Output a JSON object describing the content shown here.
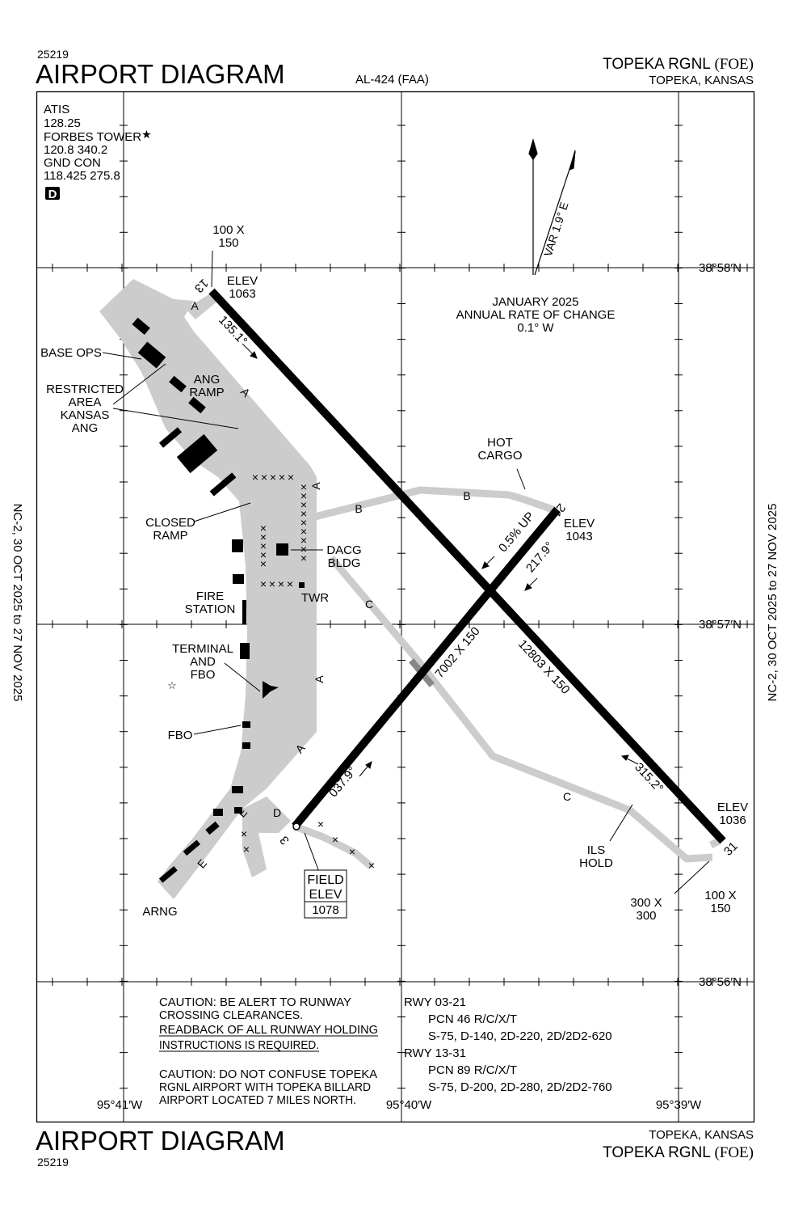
{
  "header": {
    "chart_number": "25219",
    "title": "AIRPORT DIAGRAM",
    "procedure_id": "AL-424 (FAA)",
    "airport_name": "TOPEKA RGNL",
    "airport_id": "(FOE)",
    "city_state": "TOPEKA, KANSAS"
  },
  "footer": {
    "title": "AIRPORT DIAGRAM",
    "chart_number": "25219",
    "city_state": "TOPEKA, KANSAS",
    "airport_name": "TOPEKA RGNL",
    "airport_id": "(FOE)"
  },
  "margin": {
    "left": "NC-2,  30 OCT 2025  to  27 NOV 2025",
    "right": "NC-2,  30 OCT 2025  to  27 NOV 2025"
  },
  "comms": {
    "lines": [
      "ATIS",
      "128.25",
      "FORBES TOWER",
      "120.8  340.2",
      "GND CON",
      "118.425  275.8"
    ],
    "star": "★",
    "d_badge": "D"
  },
  "magvar": {
    "var_label": "VAR 1.9° E",
    "date": "JANUARY 2025",
    "rate_label": "ANNUAL RATE OF CHANGE",
    "rate": "0.1° W"
  },
  "coords": {
    "lat": [
      "38°58′N",
      "38°57′N",
      "38°56′N"
    ],
    "lon": [
      "95°41′W",
      "95°40′W",
      "95°39′W"
    ]
  },
  "runways": {
    "r13": "13",
    "r31": "31",
    "r3": "3",
    "r21": "21",
    "hdg_135": "135.1°",
    "hdg_315": "315.2°",
    "hdg_037": "037.9°",
    "hdg_217": "217.9°",
    "dim_13_31": "12803 X 150",
    "dim_03_21": "7002 X 150",
    "slope": "0.5% UP",
    "elev_13": [
      "ELEV",
      "1063"
    ],
    "elev_21": [
      "ELEV",
      "1043"
    ],
    "elev_31": [
      "ELEV",
      "1036"
    ],
    "blast_13": [
      "100 X",
      "150"
    ],
    "blast_31": [
      "100 X",
      "150"
    ],
    "pad_31": [
      "300 X",
      "300"
    ]
  },
  "taxiways": [
    "A",
    "A",
    "A",
    "A",
    "A",
    "B",
    "B",
    "C",
    "C",
    "D",
    "E",
    "E"
  ],
  "labels": {
    "base_ops": "BASE OPS",
    "restricted": [
      "RESTRICTED",
      "AREA",
      "KANSAS",
      "ANG"
    ],
    "ang_ramp": [
      "ANG",
      "RAMP"
    ],
    "closed_ramp": [
      "CLOSED",
      "RAMP"
    ],
    "fire_station": [
      "FIRE",
      "STATION"
    ],
    "terminal": [
      "TERMINAL",
      "AND",
      "FBO"
    ],
    "fbo": "FBO",
    "arng": "ARNG",
    "dacg": [
      "DACG",
      "BLDG"
    ],
    "twr": "TWR",
    "hot_cargo": [
      "HOT",
      "CARGO"
    ],
    "ils_hold": [
      "ILS",
      "HOLD"
    ],
    "field_elev": [
      "FIELD",
      "ELEV",
      "1078"
    ]
  },
  "notes": {
    "caution1": [
      "CAUTION:  BE ALERT TO RUNWAY",
      "CROSSING CLEARANCES."
    ],
    "caution1_underlined": [
      "READBACK OF ALL RUNWAY HOLDING",
      "INSTRUCTIONS IS REQUIRED."
    ],
    "caution2": [
      "CAUTION: DO NOT CONFUSE TOPEKA",
      "RGNL AIRPORT WITH TOPEKA BILLARD",
      "AIRPORT LOCATED 7 MILES NORTH."
    ],
    "rwy_03_21": [
      "RWY  03-21",
      "PCN 46 R/C/X/T",
      "S-75, D-140, 2D-220, 2D/2D2-620"
    ],
    "rwy_13_31": [
      "RWY  13-31",
      "PCN 89 R/C/X/T",
      "S-75, D-200, 2D-280, 2D/2D2-760"
    ]
  },
  "colors": {
    "runway": "#000000",
    "taxiway": "#cccccc",
    "ink": "#000000"
  }
}
